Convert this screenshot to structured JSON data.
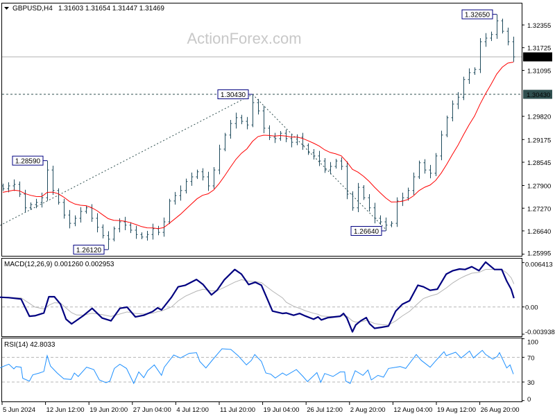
{
  "header": {
    "symbol_label": "GBPUSD,H4",
    "ohlc_label": "1.31603 1.31654 1.31447 1.31469"
  },
  "watermark": "ActionForex.com",
  "colors": {
    "bars": "#1e4a5c",
    "ma": "#ff0000",
    "macd": "#000080",
    "signal": "#b4b4b4",
    "rsi": "#1e90ff",
    "level_box": "#2f4f4f",
    "current_box": "#000000",
    "annotation_border": "#000080"
  },
  "chart_data": [
    {
      "type": "ohlc",
      "title": "GBPUSD,H4",
      "x_unit": "bar",
      "closes": [
        1.2781,
        1.2789,
        1.2793,
        1.2766,
        1.2728,
        1.2737,
        1.2743,
        1.2756,
        1.2833,
        1.2776,
        1.2743,
        1.2708,
        1.2685,
        1.2699,
        1.2718,
        1.2728,
        1.2699,
        1.2674,
        1.2651,
        1.2641,
        1.267,
        1.2689,
        1.268,
        1.2666,
        1.2654,
        1.2647,
        1.2654,
        1.267,
        1.266,
        1.2689,
        1.2747,
        1.2762,
        1.2776,
        1.2801,
        1.2814,
        1.2828,
        1.2814,
        1.2789,
        1.2833,
        1.2891,
        1.293,
        1.2962,
        1.2978,
        1.2968,
        1.2958,
        1.302,
        1.2997,
        1.2949,
        1.2924,
        1.292,
        1.2935,
        1.292,
        1.291,
        1.2924,
        1.2901,
        1.2881,
        1.2872,
        1.2858,
        1.2833,
        1.2843,
        1.2858,
        1.2843,
        1.2766,
        1.2728,
        1.2785,
        1.2756,
        1.2728,
        1.2699,
        1.2689,
        1.268,
        1.2685,
        1.2747,
        1.2756,
        1.2776,
        1.2814,
        1.2853,
        1.2833,
        1.2824,
        1.2872,
        1.293,
        1.2978,
        1.3016,
        1.3035,
        1.3084,
        1.3103,
        1.3112,
        1.3189,
        1.3199,
        1.3209,
        1.3247,
        1.3218,
        1.3189,
        1.31469
      ],
      "y_ticks": [
        "1.32355",
        "1.31725",
        "1.31095",
        "1.29820",
        "1.29175",
        "1.28545",
        "1.27900",
        "1.27270",
        "1.26640",
        "1.25995"
      ],
      "ylim": [
        1.2594,
        1.3293
      ],
      "x_ticks": [
        "5 Jun 2024",
        "12 Jun 12:00",
        "19 Jun 20:00",
        "27 Jun 04:00",
        "4 Jul 12:00",
        "11 Jul 20:00",
        "19 Jul 04:00",
        "26 Jul 12:00",
        "2 Aug 20:00",
        "12 Aug 04:00",
        "19 Aug 12:00",
        "26 Aug 20:00"
      ],
      "current_price": "1.31469",
      "level_line": "1.30430",
      "annotations": [
        {
          "text": "1.28590",
          "bar": 8,
          "kind": "high"
        },
        {
          "text": "1.26120",
          "bar": 19,
          "kind": "low"
        },
        {
          "text": "1.30430",
          "bar": 45,
          "kind": "high"
        },
        {
          "text": "1.26640",
          "bar": 69,
          "kind": "low"
        },
        {
          "text": "1.32650",
          "bar": 89,
          "kind": "high"
        }
      ],
      "trendlines": [
        [
          [
            -0.5,
            1.2679
          ],
          [
            45,
            1.3043
          ]
        ],
        [
          [
            45,
            1.3043
          ],
          [
            68.9,
            1.267
          ]
        ]
      ],
      "moving_average": "red line"
    },
    {
      "type": "line",
      "title": "MACD(12,26,9) 0.001260 0.002953",
      "ylim": [
        -0.003938,
        0.006413
      ],
      "y_ticks": [
        "0.006413",
        "0.00",
        "-0.003938"
      ],
      "macd": [
        [
          -0.5,
          0.0014
        ],
        [
          1.1,
          0.00134
        ],
        [
          3.3,
          0.00114
        ],
        [
          4.8,
          -0.00134
        ],
        [
          5.8,
          -0.00127
        ],
        [
          7.4,
          -0.00087
        ],
        [
          8.3,
          0.00147
        ],
        [
          9.3,
          0.00147
        ],
        [
          10.4,
          0.0004
        ],
        [
          11.4,
          -0.00177
        ],
        [
          12.4,
          -0.00244
        ],
        [
          13.3,
          -0.00194
        ],
        [
          14.5,
          -0.00127
        ],
        [
          16.1,
          -0.0002
        ],
        [
          17.9,
          -0.0016
        ],
        [
          19.5,
          -0.002
        ],
        [
          21.1,
          -0.0002
        ],
        [
          22.4,
          -3e-05
        ],
        [
          23.9,
          -0.00144
        ],
        [
          25.4,
          -0.0012
        ],
        [
          27,
          -0.00067
        ],
        [
          27.9,
          -0.00013
        ],
        [
          28.6,
          -0.00043
        ],
        [
          30.4,
          0.0014
        ],
        [
          31.6,
          0.00291
        ],
        [
          32.9,
          0.00314
        ],
        [
          34.9,
          0.00397
        ],
        [
          36.1,
          0.00324
        ],
        [
          37.6,
          0.00174
        ],
        [
          38.6,
          0.0024
        ],
        [
          39.9,
          0.00391
        ],
        [
          41.8,
          0.00541
        ],
        [
          43,
          0.00474
        ],
        [
          44.3,
          0.00324
        ],
        [
          45.5,
          0.00357
        ],
        [
          46.6,
          0.00314
        ],
        [
          48.6,
          -0.0006
        ],
        [
          50.4,
          -0.00094
        ],
        [
          51.1,
          -0.00087
        ],
        [
          52.4,
          -0.0012
        ],
        [
          53.5,
          -0.00094
        ],
        [
          54.5,
          -0.0013
        ],
        [
          56,
          -0.00177
        ],
        [
          56.8,
          -0.00144
        ],
        [
          57.4,
          -0.00187
        ],
        [
          58.6,
          -0.00154
        ],
        [
          60.8,
          -0.00134
        ],
        [
          61.4,
          -0.00094
        ],
        [
          62,
          -0.0016
        ],
        [
          63,
          -0.0036
        ],
        [
          63.6,
          -0.0026
        ],
        [
          64.5,
          -0.002
        ],
        [
          65.5,
          -0.00154
        ],
        [
          66.1,
          -0.00244
        ],
        [
          67,
          -0.0031
        ],
        [
          68.3,
          -0.00294
        ],
        [
          69.5,
          -0.00277
        ],
        [
          70.8,
          -0.0006
        ],
        [
          72,
          0.0004
        ],
        [
          73.3,
          0.0009
        ],
        [
          74.8,
          0.00314
        ],
        [
          75.8,
          0.00291
        ],
        [
          77,
          0.0024
        ],
        [
          78.3,
          0.00257
        ],
        [
          79.9,
          0.00474
        ],
        [
          81.1,
          0.00524
        ],
        [
          82.3,
          0.00548
        ],
        [
          83.3,
          0.00541
        ],
        [
          84.5,
          0.00581
        ],
        [
          85.8,
          0.00524
        ],
        [
          87,
          0.00648
        ],
        [
          88.6,
          0.00541
        ],
        [
          89.9,
          0.00541
        ],
        [
          90.8,
          0.00374
        ],
        [
          91.6,
          0.00257
        ],
        [
          92.1,
          0.00126
        ]
      ]
    },
    {
      "type": "line",
      "title": "RSI(14) 42.8033",
      "ylim": [
        0,
        100
      ],
      "y_ticks": [
        "100",
        "70",
        "30",
        "0"
      ],
      "levels": [
        70,
        30
      ],
      "rsi": [
        [
          -0.5,
          52.8
        ],
        [
          0.4,
          56.5
        ],
        [
          1.1,
          58.8
        ],
        [
          2,
          51.3
        ],
        [
          2.4,
          55
        ],
        [
          3.3,
          54
        ],
        [
          3.6,
          36
        ],
        [
          4.8,
          31.5
        ],
        [
          5.4,
          41.6
        ],
        [
          6.6,
          44.6
        ],
        [
          7.4,
          47
        ],
        [
          8,
          72.6
        ],
        [
          8.6,
          55.8
        ],
        [
          9.8,
          44.6
        ],
        [
          11,
          35.2
        ],
        [
          12.3,
          34.1
        ],
        [
          12.9,
          44.6
        ],
        [
          13.6,
          39
        ],
        [
          15.1,
          54
        ],
        [
          16.4,
          50.2
        ],
        [
          17.4,
          33.4
        ],
        [
          18.6,
          28.9
        ],
        [
          19.3,
          31.5
        ],
        [
          20.1,
          52
        ],
        [
          21.1,
          58.8
        ],
        [
          22.3,
          52
        ],
        [
          23.6,
          27.8
        ],
        [
          24.5,
          46.4
        ],
        [
          25.4,
          37.1
        ],
        [
          26.1,
          48.3
        ],
        [
          27.3,
          57.7
        ],
        [
          28.6,
          40.8
        ],
        [
          29.1,
          54
        ],
        [
          30.8,
          73.7
        ],
        [
          32,
          68.9
        ],
        [
          33.6,
          76.4
        ],
        [
          34.9,
          77.5
        ],
        [
          35.5,
          63.3
        ],
        [
          36.6,
          52.8
        ],
        [
          37.9,
          67
        ],
        [
          39.5,
          83.8
        ],
        [
          41.1,
          82.7
        ],
        [
          42.4,
          72.6
        ],
        [
          43.9,
          57.7
        ],
        [
          44.8,
          65.1
        ],
        [
          45.4,
          74.5
        ],
        [
          46.6,
          63.3
        ],
        [
          47.4,
          44.6
        ],
        [
          48.3,
          42.7
        ],
        [
          49.1,
          36.4
        ],
        [
          50.4,
          44.6
        ],
        [
          51.1,
          40.8
        ],
        [
          52.9,
          50.2
        ],
        [
          54.1,
          39
        ],
        [
          54.9,
          30.7
        ],
        [
          56.6,
          45.3
        ],
        [
          57.3,
          29.6
        ],
        [
          58,
          43.8
        ],
        [
          59.5,
          39
        ],
        [
          60.8,
          46.4
        ],
        [
          61.6,
          46.4
        ],
        [
          61.8,
          31.5
        ],
        [
          62.6,
          27.8
        ],
        [
          63.5,
          48.3
        ],
        [
          64.9,
          40.8
        ],
        [
          65.8,
          49.4
        ],
        [
          66.4,
          33.4
        ],
        [
          67.6,
          40.8
        ],
        [
          68.6,
          37.8
        ],
        [
          69.5,
          52
        ],
        [
          70.8,
          53.9
        ],
        [
          71.6,
          55
        ],
        [
          72.6,
          52
        ],
        [
          74.5,
          74.5
        ],
        [
          75.4,
          65.1
        ],
        [
          77,
          53.9
        ],
        [
          77.9,
          63.3
        ],
        [
          79.5,
          79
        ],
        [
          79.9,
          72.6
        ],
        [
          81.6,
          78.2
        ],
        [
          82.6,
          68.9
        ],
        [
          84.1,
          80.1
        ],
        [
          84.8,
          68.9
        ],
        [
          86.4,
          81.2
        ],
        [
          87,
          74.5
        ],
        [
          88.3,
          67
        ],
        [
          89.1,
          71.5
        ],
        [
          89.5,
          77.5
        ],
        [
          90.8,
          52.8
        ],
        [
          91.4,
          57.7
        ],
        [
          92,
          42.8
        ]
      ]
    }
  ]
}
